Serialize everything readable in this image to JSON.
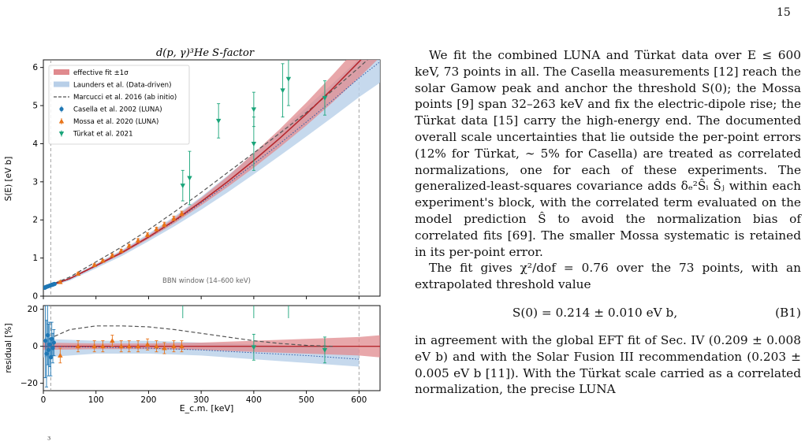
{
  "page": {
    "number": "15"
  },
  "figure": {
    "title": "d(p, γ)³He S-factor",
    "legend": [
      {
        "label": "effective fit ±1σ",
        "kind": "band",
        "color": "#e08a8e"
      },
      {
        "label": "Launders et al. (Data-driven)",
        "kind": "band",
        "color": "#b8cfe8"
      },
      {
        "label": "Marcucci et al. 2016 (ab initio)",
        "kind": "dashed",
        "color": "#555555"
      },
      {
        "label": "Casella et al. 2002 (LUNA)",
        "kind": "marker-circle",
        "color": "#1f77b4"
      },
      {
        "label": "Mossa et al. 2020 (LUNA)",
        "kind": "marker-triangle-up",
        "color": "#e8741a"
      },
      {
        "label": "Türkat et al. 2021",
        "kind": "marker-triangle-down",
        "color": "#1aa57a"
      }
    ],
    "annotation": "BBN window (14–600 keV)",
    "x_axis_label": "E_c.m. [keV]",
    "y_axis_label_top": "S(E) [eV b]",
    "y_axis_label_bottom": "residual [%]",
    "x_ticks": [
      "0",
      "100",
      "200",
      "300",
      "400",
      "500",
      "600"
    ],
    "y_ticks_top": [
      "0",
      "1",
      "2",
      "3",
      "4",
      "5",
      "6"
    ],
    "y_ticks_bottom": [
      "−20",
      "0",
      "20"
    ],
    "caption_fragment": "³"
  },
  "chart_data": [
    {
      "type": "scatter",
      "panel": "top",
      "title": "d(p, γ)³He S-factor",
      "xlabel": "E_c.m. [keV]",
      "ylabel": "S(E) [eV b]",
      "xlim": [
        0,
        640
      ],
      "ylim": [
        0,
        6.2
      ],
      "vertical_lines_x": [
        14,
        600
      ],
      "series": [
        {
          "name": "effective fit ±1σ",
          "kind": "line-band",
          "color": "#b5272d",
          "x": [
            0,
            50,
            100,
            150,
            200,
            250,
            300,
            350,
            400,
            450,
            500,
            550,
            600,
            640
          ],
          "y": [
            0.214,
            0.46,
            0.8,
            1.15,
            1.55,
            1.99,
            2.48,
            3.0,
            3.56,
            4.15,
            4.78,
            5.45,
            6.15,
            6.75
          ],
          "band": [
            0.01,
            0.02,
            0.03,
            0.04,
            0.05,
            0.07,
            0.1,
            0.14,
            0.19,
            0.24,
            0.3,
            0.36,
            0.42,
            0.48
          ]
        },
        {
          "name": "Launders et al. (Data-driven)",
          "kind": "line-band",
          "color": "#2f5aa8",
          "x": [
            0,
            50,
            100,
            150,
            200,
            250,
            300,
            350,
            400,
            450,
            500,
            550,
            600,
            640
          ],
          "y": [
            0.21,
            0.45,
            0.79,
            1.14,
            1.54,
            1.97,
            2.44,
            2.94,
            3.47,
            4.01,
            4.57,
            5.14,
            5.72,
            6.15
          ],
          "band": [
            0.02,
            0.04,
            0.06,
            0.08,
            0.1,
            0.13,
            0.17,
            0.22,
            0.27,
            0.32,
            0.38,
            0.44,
            0.5,
            0.55
          ]
        },
        {
          "name": "Marcucci et al. 2016 (ab initio)",
          "kind": "dashed",
          "color": "#555555",
          "x": [
            0,
            50,
            100,
            150,
            200,
            250,
            300,
            350,
            400,
            450,
            500,
            550,
            600,
            640
          ],
          "y": [
            0.22,
            0.5,
            0.9,
            1.3,
            1.74,
            2.22,
            2.72,
            3.24,
            3.76,
            4.28,
            4.82,
            5.4,
            6.0,
            6.5
          ]
        },
        {
          "name": "Casella et al. 2002 (LUNA)",
          "kind": "circle",
          "color": "#1f77b4",
          "x": [
            2.5,
            3.5,
            4.5,
            5.5,
            6.5,
            7.5,
            8.5,
            9.5,
            10.5,
            11.5,
            12.5,
            13.5,
            14.5,
            15.5,
            16.5,
            17.5,
            18.5,
            19.5,
            20.5,
            21.5
          ],
          "y": [
            0.22,
            0.23,
            0.24,
            0.24,
            0.25,
            0.25,
            0.26,
            0.26,
            0.27,
            0.27,
            0.28,
            0.28,
            0.29,
            0.29,
            0.3,
            0.3,
            0.31,
            0.31,
            0.32,
            0.32
          ],
          "err": [
            0.04,
            0.03,
            0.03,
            0.02,
            0.02,
            0.02,
            0.02,
            0.02,
            0.02,
            0.02,
            0.02,
            0.02,
            0.02,
            0.02,
            0.02,
            0.02,
            0.02,
            0.02,
            0.02,
            0.02
          ]
        },
        {
          "name": "Mossa et al. 2020 (LUNA)",
          "kind": "triangle-up",
          "color": "#e8741a",
          "x": [
            32,
            66,
            97,
            113,
            131,
            148,
            163,
            180,
            198,
            215,
            230,
            248,
            263
          ],
          "y": [
            0.37,
            0.59,
            0.82,
            0.93,
            1.07,
            1.19,
            1.32,
            1.46,
            1.61,
            1.76,
            1.88,
            2.04,
            2.17
          ],
          "err": [
            0.03,
            0.03,
            0.03,
            0.03,
            0.04,
            0.04,
            0.04,
            0.05,
            0.05,
            0.05,
            0.06,
            0.06,
            0.06
          ]
        },
        {
          "name": "Türkat et al. 2021",
          "kind": "triangle-down",
          "color": "#1aa57a",
          "x": [
            265,
            278,
            333,
            400,
            400,
            455,
            466,
            535
          ],
          "y": [
            2.9,
            3.1,
            4.6,
            4.0,
            4.9,
            5.4,
            5.7,
            5.2
          ],
          "err": [
            0.4,
            0.7,
            0.45,
            0.7,
            0.45,
            0.7,
            0.7,
            0.45
          ]
        }
      ]
    },
    {
      "type": "scatter",
      "panel": "bottom",
      "xlabel": "E_c.m. [keV]",
      "ylabel": "residual [%]",
      "xlim": [
        0,
        640
      ],
      "ylim": [
        -24,
        22
      ],
      "series": [
        {
          "name": "effective fit ±1σ",
          "kind": "band",
          "color": "#e08a8e",
          "x": [
            0,
            100,
            200,
            300,
            400,
            500,
            600,
            640
          ],
          "lo": [
            -2,
            -1.5,
            -1.5,
            -2,
            -3,
            -4,
            -5,
            -6
          ],
          "hi": [
            2,
            1.5,
            1.5,
            2,
            3,
            4,
            5,
            6
          ]
        },
        {
          "name": "Launders et al. (Data-driven)",
          "kind": "band",
          "color": "#b8cfe8",
          "x": [
            0,
            100,
            200,
            300,
            400,
            500,
            600
          ],
          "lo": [
            -6,
            -4,
            -4,
            -5,
            -7,
            -9,
            -11
          ],
          "hi": [
            4,
            3,
            3,
            2,
            1,
            0,
            -1
          ]
        },
        {
          "name": "Marcucci et al. 2016 (ab initio)",
          "kind": "dashed",
          "color": "#555555",
          "x": [
            10,
            50,
            100,
            150,
            200,
            250,
            300,
            350,
            400,
            450,
            500,
            550
          ],
          "y": [
            4,
            9,
            11,
            11,
            10.5,
            9,
            7,
            5,
            3,
            1.5,
            0.5,
            0
          ]
        },
        {
          "name": "Launders dotted",
          "kind": "dotted",
          "color": "#2f5aa8",
          "x": [
            0,
            100,
            200,
            300,
            400,
            500,
            600
          ],
          "y": [
            0,
            -0.5,
            -1,
            -2,
            -3.5,
            -5,
            -7
          ]
        },
        {
          "name": "Casella et al. 2002 (LUNA)",
          "kind": "circle",
          "color": "#1f77b4",
          "x": [
            4,
            6,
            8,
            10,
            12,
            14,
            16,
            18,
            20
          ],
          "y": [
            3,
            -4,
            6,
            -2,
            1,
            -6,
            4,
            -1,
            2
          ],
          "err": [
            20,
            18,
            16,
            14,
            12,
            10,
            9,
            8,
            7
          ]
        },
        {
          "name": "Mossa et al. 2020 (LUNA)",
          "kind": "triangle-up",
          "color": "#e8741a",
          "x": [
            32,
            66,
            97,
            113,
            131,
            148,
            163,
            180,
            198,
            215,
            230,
            248,
            263
          ],
          "y": [
            -5,
            0,
            0,
            0,
            3,
            0,
            0,
            0,
            1,
            0,
            -1,
            0,
            0
          ],
          "err": [
            4,
            3,
            3,
            3,
            3,
            3,
            3,
            3,
            3,
            3,
            3,
            3,
            3
          ]
        },
        {
          "name": "Türkat et al. 2021",
          "kind": "triangle-down",
          "color": "#1aa57a",
          "x": [
            400,
            535
          ],
          "y": [
            -0.5,
            -2
          ],
          "err": [
            7,
            7
          ]
        }
      ]
    }
  ],
  "text": {
    "p1": "We fit the combined LUNA and Türkat data over E ≤ 600 keV, 73 points in all. The Casella measurements [12] reach the solar Gamow peak and anchor the threshold S(0); the Mossa points [9] span 32–263 keV and fix the electric-dipole rise; the Türkat data [15] carry the high-energy end. The documented overall scale uncertainties that lie outside the per-point errors (12% for Türkat, ∼ 5% for Casella) are treated as correlated normalizations, one for each of these experiments. The generalized-least-squares covariance adds δₑ²Ŝᵢ Ŝⱼ within each experiment's block, with the correlated term evaluated on the model prediction Ŝ to avoid the normalization bias of correlated fits [69]. The smaller Mossa systematic is retained in its per-point error.",
    "p2": "The fit gives χ²/dof = 0.76 over the 73 points, with an extrapolated threshold value",
    "equation": "S(0) = 0.214 ± 0.010 eV b,",
    "equation_number": "(B1)",
    "p3": "in agreement with the global EFT fit of Sec. IV (0.209 ± 0.008 eV b) and with the Solar Fusion III recommendation (0.203 ± 0.005 eV b [11]). With the Türkat scale carried as a correlated normalization, the precise LUNA"
  },
  "colors": {
    "fit_line": "#b5272d",
    "fit_band": "#e08a8e",
    "launders_band": "#b8cfe8",
    "launders_line": "#2f5aa8",
    "casella": "#1f77b4",
    "mossa": "#e8741a",
    "turkat": "#1aa57a",
    "link": "#1f4fbf"
  }
}
